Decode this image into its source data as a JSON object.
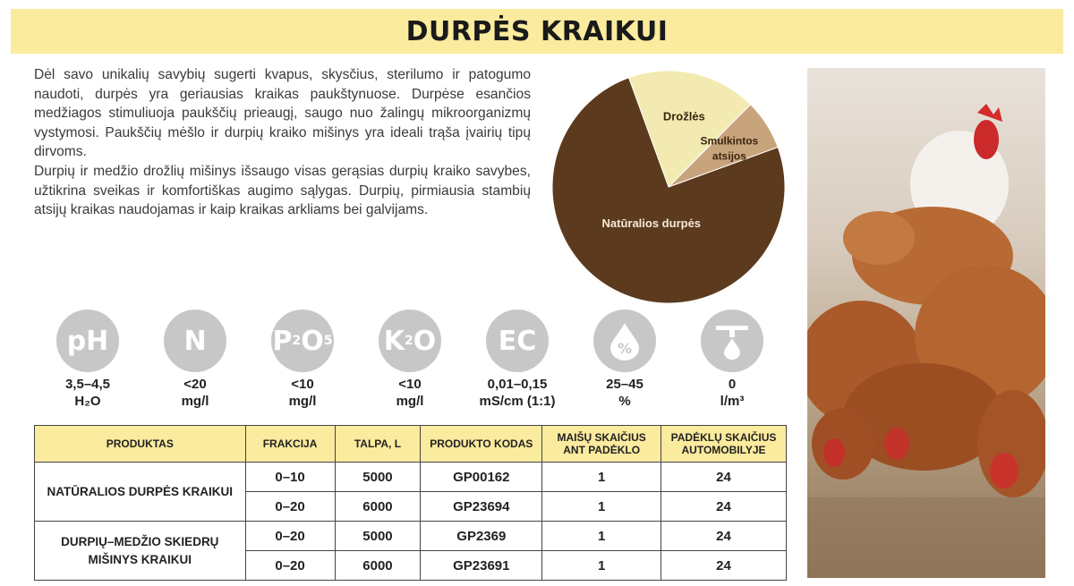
{
  "title": "DURPĖS KRAIKUI",
  "intro": {
    "p1": "Dėl savo unikalių savybių sugerti kvapus, skysčius, sterilumo ir patogumo naudoti, durpės yra geriausias kraikas paukštynuose. Durpėse esančios medžiagos stimuliuoja paukščių prieaugį, saugo nuo žalingų mikroorganizmų vystymosi. Paukščių mėšlo ir durpių kraiko mišinys yra ideali trąša įvairių tipų dirvoms.",
    "p2": "Durpių ir medžio drožlių mišinys išsaugo visas gerąsias durpių kraiko savybes, užtikrina sveikas ir komfortiškas augimo sąlygas. Durpių, pirmiausia stambių atsijų kraikas naudojamas ir kaip kraikas arkliams bei galvijams."
  },
  "chart_data": {
    "type": "pie",
    "slices": [
      {
        "label": "Drožlės",
        "value": 18,
        "color": "#f2eab0"
      },
      {
        "label": "Smulkintos atsijos",
        "value": 7,
        "color": "#c8a47c"
      },
      {
        "label": "Natūralios durpės",
        "value": 75,
        "color": "#5c3a1e"
      }
    ]
  },
  "parameters": [
    {
      "symbol": "pH",
      "sub": "",
      "value": "3,5–4,5",
      "unit": "H₂O",
      "icon": "ph-icon"
    },
    {
      "symbol": "N",
      "sub": "",
      "value": "<20",
      "unit": "mg/l",
      "icon": "nitrogen-icon"
    },
    {
      "symbol": "P₂O₅",
      "sub": "",
      "value": "<10",
      "unit": "mg/l",
      "icon": "phosphorus-icon"
    },
    {
      "symbol": "K₂O",
      "sub": "",
      "value": "<10",
      "unit": "mg/l",
      "icon": "potassium-icon"
    },
    {
      "symbol": "EC",
      "sub": "",
      "value": "0,01–0,15",
      "unit": "mS/cm (1:1)",
      "icon": "ec-icon"
    },
    {
      "symbol": "%",
      "sub": "",
      "value": "25–45",
      "unit": "%",
      "icon": "moisture-drop-icon"
    },
    {
      "symbol": "",
      "sub": "",
      "value": "0",
      "unit": "l/m³",
      "icon": "dripper-icon"
    }
  ],
  "table": {
    "headers": [
      "PRODUKTAS",
      "FRAKCIJA",
      "TALPA, L",
      "PRODUKTO KODAS",
      "MAIŠŲ SKAIČIUS ANT PADĖKLO",
      "PADĖKLŲ SKAIČIUS AUTOMOBILYJE"
    ],
    "groups": [
      {
        "product": "NATŪRALIOS DURPĖS KRAIKUI",
        "rows": [
          [
            "0–10",
            "5000",
            "GP00162",
            "1",
            "24"
          ],
          [
            "0–20",
            "6000",
            "GP23694",
            "1",
            "24"
          ]
        ]
      },
      {
        "product": "DURPIŲ–MEDŽIO SKIEDRŲ MIŠINYS KRAIKUI",
        "rows": [
          [
            "0–20",
            "5000",
            "GP2369",
            "1",
            "24"
          ],
          [
            "0–20",
            "6000",
            "GP23691",
            "1",
            "24"
          ]
        ]
      }
    ]
  }
}
